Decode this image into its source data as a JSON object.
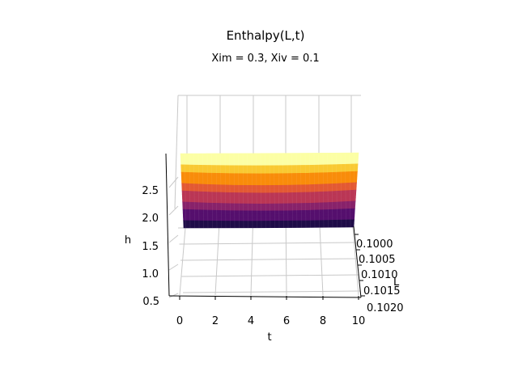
{
  "chart_data": {
    "type": "surface3d",
    "title": "Enthalpy(L,t)",
    "subtitle": "Xim = 0.3, Xiv = 0.1",
    "xlabel": "t",
    "ylabel": "L",
    "zlabel": "h",
    "x_ticks": [
      "0",
      "2",
      "4",
      "6",
      "8",
      "10"
    ],
    "y_ticks": [
      "0.1000",
      "0.1005",
      "0.1010",
      "0.1015",
      "0.1020"
    ],
    "z_ticks": [
      "0.5",
      "1.0",
      "1.5",
      "2.0",
      "2.5"
    ],
    "xlim": [
      0,
      10
    ],
    "ylim": [
      0.1,
      0.102
    ],
    "zlim": [
      0.5,
      3.0
    ],
    "surface": {
      "t_range": [
        0,
        10
      ],
      "h_range": [
        2.0,
        2.8
      ],
      "colormap": "inferno",
      "colors": [
        "#1f0c48",
        "#550f6d",
        "#88226a",
        "#ba3655",
        "#e35933",
        "#f98c0a",
        "#f9c932",
        "#fcffa4"
      ]
    },
    "grid": true
  }
}
